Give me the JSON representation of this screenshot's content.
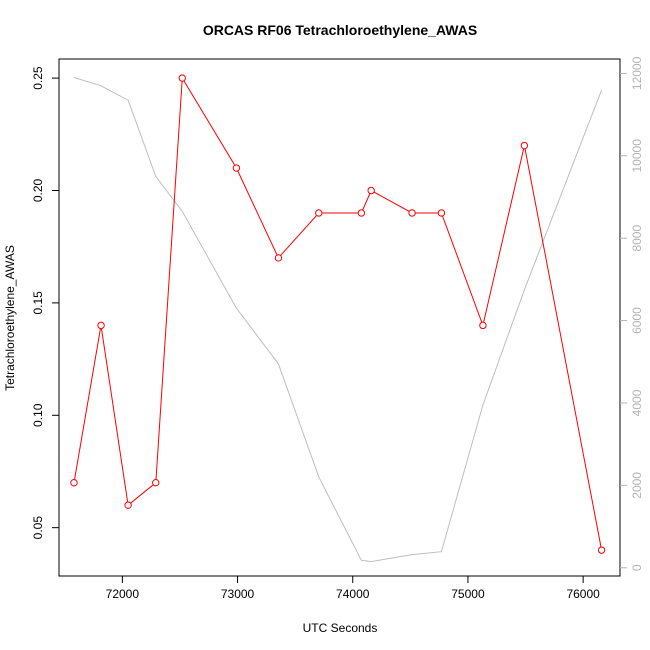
{
  "chart_data": {
    "type": "line",
    "title": "ORCAS RF06 Tetrachloroethylene_AWAS",
    "xlabel": "UTC Seconds",
    "ylabel": "Tetrachloroethylene_AWAS",
    "xlim": [
      71450,
      76320
    ],
    "ylim": [
      0.0285,
      0.2585
    ],
    "y2lim": [
      -200,
      12350
    ],
    "x_ticks": [
      72000,
      73000,
      74000,
      75000,
      76000
    ],
    "y_ticks": [
      0.05,
      0.1,
      0.15,
      0.2,
      0.25
    ],
    "y2_ticks": [
      0,
      2000,
      4000,
      6000,
      8000,
      10000,
      12000
    ],
    "grid": false,
    "series": [
      {
        "axis": "left",
        "color": "#ff0000",
        "marker": "circle",
        "x": [
          71580,
          71815,
          72050,
          72290,
          72520,
          72990,
          73355,
          73705,
          74075,
          74160,
          74515,
          74770,
          75130,
          75490,
          76160
        ],
        "values": [
          0.07,
          0.14,
          0.06,
          0.07,
          0.25,
          0.21,
          0.17,
          0.19,
          0.19,
          0.2,
          0.19,
          0.19,
          0.14,
          0.22,
          0.04
        ]
      },
      {
        "axis": "right",
        "color": "#bebebe",
        "marker": "none",
        "x": [
          71580,
          71815,
          72050,
          72290,
          72520,
          72990,
          73355,
          73705,
          74075,
          74160,
          74515,
          74770,
          75130,
          75490,
          76160
        ],
        "values": [
          11900,
          11700,
          11350,
          9500,
          8650,
          6300,
          4950,
          2200,
          180,
          150,
          320,
          390,
          3950,
          6750,
          11600
        ]
      }
    ]
  }
}
